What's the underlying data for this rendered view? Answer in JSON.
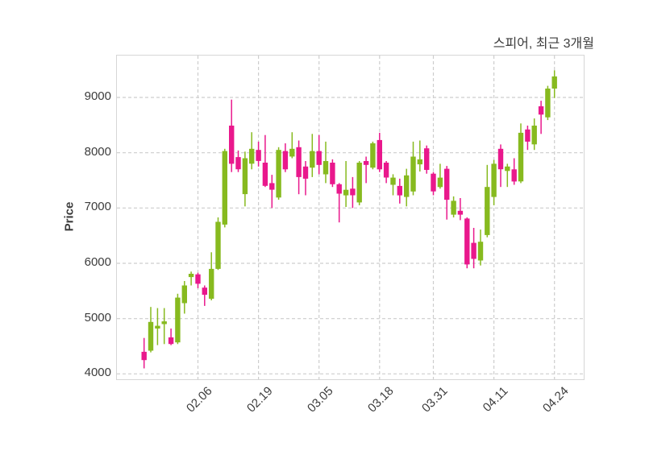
{
  "chart_data": {
    "type": "candlestick",
    "title": "스피어, 최근 3개월",
    "ylabel": "Price",
    "xlabel": "",
    "ylim": [
      3903,
      9757
    ],
    "grid": true,
    "legend": false,
    "y_ticks": [
      4000,
      5000,
      6000,
      7000,
      8000,
      9000
    ],
    "x_ticks": [
      {
        "label": "02.06",
        "index": 8
      },
      {
        "label": "02.19",
        "index": 17
      },
      {
        "label": "03.05",
        "index": 26
      },
      {
        "label": "03.18",
        "index": 35
      },
      {
        "label": "03.31",
        "index": 43
      },
      {
        "label": "04.11",
        "index": 52
      },
      {
        "label": "04.24",
        "index": 61
      }
    ],
    "colors": {
      "up": "#87ba1f",
      "down": "#e9188c",
      "grid": "#cdcdcd",
      "border": "#d6d6d6",
      "text": "#3c3c3c",
      "background": "#ffffff"
    },
    "ohlc_format": [
      "open",
      "high",
      "low",
      "close"
    ],
    "candles": [
      [
        4400,
        4650,
        4100,
        4250
      ],
      [
        4420,
        5210,
        4390,
        4940
      ],
      [
        4820,
        5190,
        4520,
        4870
      ],
      [
        4900,
        5190,
        4540,
        4950
      ],
      [
        4660,
        4820,
        4520,
        4540
      ],
      [
        4570,
        5450,
        4540,
        5380
      ],
      [
        5280,
        5680,
        5090,
        5600
      ],
      [
        5750,
        5850,
        5600,
        5810
      ],
      [
        5800,
        5830,
        5550,
        5630
      ],
      [
        5560,
        5600,
        5230,
        5430
      ],
      [
        5360,
        6200,
        5330,
        5900
      ],
      [
        5900,
        6830,
        5880,
        6750
      ],
      [
        6700,
        8070,
        6650,
        8030
      ],
      [
        8490,
        8960,
        7650,
        7800
      ],
      [
        7920,
        8040,
        7650,
        7700
      ],
      [
        7250,
        8020,
        7030,
        7900
      ],
      [
        7800,
        8370,
        7700,
        8070
      ],
      [
        8050,
        8200,
        7750,
        7850
      ],
      [
        7820,
        8320,
        7380,
        7400
      ],
      [
        7450,
        7600,
        7000,
        7330
      ],
      [
        7190,
        8100,
        7150,
        8050
      ],
      [
        8030,
        8170,
        7650,
        7700
      ],
      [
        7930,
        8370,
        7900,
        8070
      ],
      [
        8100,
        8220,
        7250,
        7560
      ],
      [
        7750,
        7850,
        7230,
        7530
      ],
      [
        7730,
        8340,
        7560,
        8030
      ],
      [
        8030,
        8320,
        7610,
        7780
      ],
      [
        7610,
        8200,
        7450,
        7850
      ],
      [
        7820,
        7880,
        7380,
        7430
      ],
      [
        7430,
        7450,
        6740,
        7260
      ],
      [
        7230,
        7850,
        7020,
        7330
      ],
      [
        7350,
        7560,
        7000,
        7230
      ],
      [
        7100,
        7850,
        7050,
        7820
      ],
      [
        7850,
        7930,
        7450,
        7780
      ],
      [
        7730,
        8200,
        7700,
        8170
      ],
      [
        8230,
        8360,
        7650,
        7700
      ],
      [
        7820,
        7850,
        7450,
        7550
      ],
      [
        7420,
        7610,
        7230,
        7550
      ],
      [
        7400,
        7530,
        7080,
        7230
      ],
      [
        7200,
        7710,
        7030,
        7590
      ],
      [
        7300,
        8200,
        7230,
        7930
      ],
      [
        7790,
        8220,
        7660,
        7880
      ],
      [
        8080,
        8130,
        7620,
        7690
      ],
      [
        7620,
        7650,
        7230,
        7300
      ],
      [
        7380,
        7800,
        7350,
        7550
      ],
      [
        7710,
        7760,
        6790,
        7150
      ],
      [
        6880,
        7210,
        6830,
        7130
      ],
      [
        6950,
        7180,
        6780,
        6880
      ],
      [
        6810,
        6830,
        5910,
        5980
      ],
      [
        6370,
        6640,
        5910,
        6080
      ],
      [
        6050,
        6610,
        5960,
        6390
      ],
      [
        6510,
        7780,
        6470,
        7380
      ],
      [
        7200,
        7870,
        7050,
        7800
      ],
      [
        8070,
        8150,
        7380,
        7700
      ],
      [
        7670,
        7800,
        7380,
        7750
      ],
      [
        7700,
        7900,
        7420,
        7480
      ],
      [
        7480,
        8530,
        7450,
        8360
      ],
      [
        8420,
        8490,
        8050,
        8200
      ],
      [
        8150,
        8620,
        8050,
        8490
      ],
      [
        8840,
        8940,
        8340,
        8690
      ],
      [
        8640,
        9210,
        8590,
        9160
      ],
      [
        9160,
        9490,
        8990,
        9380
      ]
    ]
  }
}
